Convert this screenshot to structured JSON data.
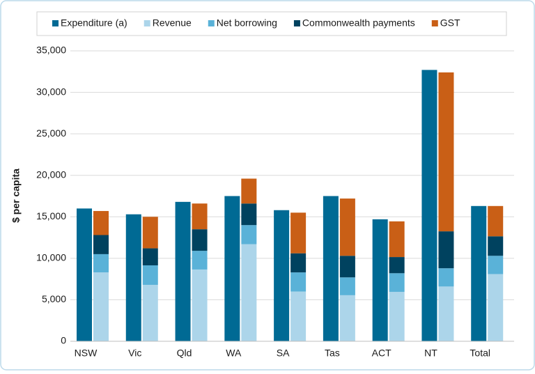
{
  "chart_data": {
    "type": "bar",
    "y_label": "$ per capita",
    "categories": [
      "NSW",
      "Vic",
      "Qld",
      "WA",
      "SA",
      "Tas",
      "ACT",
      "NT",
      "Total"
    ],
    "series": [
      {
        "name": "Expenditure (a)",
        "color": "#006a94",
        "values": [
          16000,
          15300,
          16800,
          17500,
          15800,
          17500,
          14700,
          32700,
          16300
        ]
      },
      {
        "name": "Revenue",
        "color": "#acd5ea",
        "values": [
          8300,
          6800,
          8650,
          11700,
          6000,
          5550,
          5950,
          6600,
          8100
        ]
      },
      {
        "name": "Net borrowing",
        "color": "#5ab2d8",
        "values": [
          2200,
          2350,
          2250,
          2300,
          2300,
          2150,
          2250,
          2200,
          2200
        ]
      },
      {
        "name": "Commonwealth payments",
        "color": "#00425f",
        "values": [
          2300,
          2050,
          2600,
          2600,
          2300,
          2600,
          1950,
          4450,
          2350
        ]
      },
      {
        "name": "GST",
        "color": "#c95f16",
        "values": [
          2900,
          3800,
          3100,
          3000,
          4900,
          6900,
          4300,
          19150,
          3650
        ]
      }
    ],
    "ylim": [
      0,
      35000
    ],
    "yticks": [
      0,
      {
        "value": 5000,
        "label": "5,000"
      },
      {
        "value": 10000,
        "label": "10,000"
      },
      {
        "value": 15000,
        "label": "15,000"
      },
      {
        "value": 20000,
        "label": "20,000"
      },
      {
        "value": 25000,
        "label": "25,000"
      },
      {
        "value": 30000,
        "label": "30,000"
      },
      {
        "value": 35000,
        "label": "35,000"
      }
    ],
    "grid": true,
    "legend": "top"
  }
}
